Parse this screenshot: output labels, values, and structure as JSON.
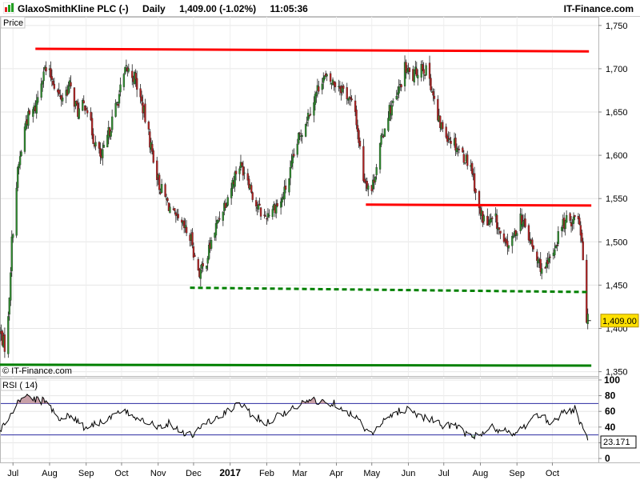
{
  "header": {
    "instrument": "GlaxoSmithKline PLC (-)",
    "period": "Daily",
    "quote": "1,409.00 (-1.02%)",
    "time": "11:05:36",
    "brand": "IT-Finance.com"
  },
  "watermark": "© IT-Finance.com",
  "price_panel_label": "Price",
  "rsi_panel_label": "RSI ( 14)",
  "last_price_tag": "1,409.00",
  "last_rsi_tag": "23.171",
  "colors": {
    "up": "#2e8b2e",
    "down": "#b22222",
    "resistance": "#ff0000",
    "support": "#008000",
    "rsi_line": "#000000",
    "rsi_band": "#2a2aa0",
    "price_tag_bg": "#ffe000"
  },
  "chart_data": [
    {
      "type": "candlestick",
      "name": "Price",
      "y_ticks": [
        "1,750",
        "1,700",
        "1,650",
        "1,600",
        "1,550",
        "1,500",
        "1,450",
        "1,400",
        "1,350"
      ],
      "y_tick_values": [
        1750,
        1700,
        1650,
        1600,
        1550,
        1500,
        1450,
        1400,
        1350
      ],
      "ylim": [
        1345,
        1760
      ],
      "x_ticks": [
        "Jul",
        "Aug",
        "Sep",
        "Oct",
        "Nov",
        "Dec",
        "2017",
        "Feb",
        "Mar",
        "Apr",
        "May",
        "Jun",
        "Jul",
        "Aug",
        "Sep",
        "Oct"
      ],
      "x_tick_dates": [
        "2016-07-01",
        "2016-08-01",
        "2016-09-01",
        "2016-10-01",
        "2016-11-01",
        "2016-12-01",
        "2017-01-01",
        "2017-02-01",
        "2017-03-01",
        "2017-04-01",
        "2017-05-01",
        "2017-06-01",
        "2017-07-01",
        "2017-08-01",
        "2017-09-01",
        "2017-10-01"
      ],
      "xlim": [
        "2016-06-20",
        "2017-11-09"
      ],
      "path": [
        [
          "2016-06-20",
          1395
        ],
        [
          "2016-06-24",
          1380
        ],
        [
          "2016-06-27",
          1410
        ],
        [
          "2016-06-30",
          1500
        ],
        [
          "2016-07-05",
          1580
        ],
        [
          "2016-07-12",
          1640
        ],
        [
          "2016-07-20",
          1655
        ],
        [
          "2016-07-27",
          1700
        ],
        [
          "2016-08-03",
          1690
        ],
        [
          "2016-08-10",
          1665
        ],
        [
          "2016-08-18",
          1680
        ],
        [
          "2016-08-25",
          1650
        ],
        [
          "2016-09-01",
          1660
        ],
        [
          "2016-09-07",
          1620
        ],
        [
          "2016-09-14",
          1595
        ],
        [
          "2016-09-21",
          1630
        ],
        [
          "2016-09-28",
          1665
        ],
        [
          "2016-10-05",
          1700
        ],
        [
          "2016-10-12",
          1690
        ],
        [
          "2016-10-19",
          1655
        ],
        [
          "2016-10-26",
          1610
        ],
        [
          "2016-11-02",
          1565
        ],
        [
          "2016-11-09",
          1545
        ],
        [
          "2016-11-16",
          1525
        ],
        [
          "2016-11-23",
          1515
        ],
        [
          "2016-11-30",
          1500
        ],
        [
          "2016-12-02",
          1480
        ],
        [
          "2016-12-06",
          1465
        ],
        [
          "2016-12-10",
          1470
        ],
        [
          "2016-12-16",
          1500
        ],
        [
          "2016-12-23",
          1530
        ],
        [
          "2017-01-01",
          1560
        ],
        [
          "2017-01-08",
          1590
        ],
        [
          "2017-01-15",
          1580
        ],
        [
          "2017-01-22",
          1545
        ],
        [
          "2017-01-30",
          1528
        ],
        [
          "2017-02-06",
          1540
        ],
        [
          "2017-02-13",
          1545
        ],
        [
          "2017-02-20",
          1575
        ],
        [
          "2017-02-27",
          1615
        ],
        [
          "2017-03-06",
          1640
        ],
        [
          "2017-03-13",
          1665
        ],
        [
          "2017-03-20",
          1690
        ],
        [
          "2017-03-27",
          1685
        ],
        [
          "2017-04-03",
          1682
        ],
        [
          "2017-04-10",
          1670
        ],
        [
          "2017-04-17",
          1650
        ],
        [
          "2017-04-24",
          1575
        ],
        [
          "2017-05-01",
          1560
        ],
        [
          "2017-05-08",
          1610
        ],
        [
          "2017-05-15",
          1650
        ],
        [
          "2017-05-22",
          1665
        ],
        [
          "2017-05-29",
          1700
        ],
        [
          "2017-06-05",
          1690
        ],
        [
          "2017-06-12",
          1705
        ],
        [
          "2017-06-19",
          1690
        ],
        [
          "2017-06-26",
          1640
        ],
        [
          "2017-07-03",
          1625
        ],
        [
          "2017-07-10",
          1615
        ],
        [
          "2017-07-17",
          1600
        ],
        [
          "2017-07-24",
          1590
        ],
        [
          "2017-07-31",
          1535
        ],
        [
          "2017-08-07",
          1520
        ],
        [
          "2017-08-14",
          1525
        ],
        [
          "2017-08-21",
          1495
        ],
        [
          "2017-08-28",
          1500
        ],
        [
          "2017-09-04",
          1530
        ],
        [
          "2017-09-11",
          1505
        ],
        [
          "2017-09-18",
          1478
        ],
        [
          "2017-09-25",
          1465
        ],
        [
          "2017-10-02",
          1490
        ],
        [
          "2017-10-09",
          1520
        ],
        [
          "2017-10-16",
          1525
        ],
        [
          "2017-10-23",
          1530
        ],
        [
          "2017-10-26",
          1505
        ],
        [
          "2017-10-30",
          1413
        ],
        [
          "2017-10-31",
          1409
        ]
      ],
      "last_close": 1409.0,
      "annotations": [
        {
          "kind": "resistance",
          "style": "solid",
          "from": [
            "2016-07-20",
            1723
          ],
          "to": [
            "2017-11-01",
            1720
          ]
        },
        {
          "kind": "resistance",
          "style": "solid",
          "from": [
            "2017-04-26",
            1543
          ],
          "to": [
            "2017-11-03",
            1542
          ]
        },
        {
          "kind": "support",
          "style": "dashed",
          "from": [
            "2016-11-28",
            1447
          ],
          "to": [
            "2017-11-01",
            1442
          ]
        },
        {
          "kind": "support",
          "style": "solid",
          "from": [
            "2016-06-20",
            1358
          ],
          "to": [
            "2017-11-03",
            1357
          ]
        }
      ]
    },
    {
      "type": "line",
      "name": "RSI ( 14)",
      "y_ticks": [
        "100",
        "80",
        "60",
        "40",
        "20",
        "0"
      ],
      "y_tick_values": [
        100,
        80,
        60,
        40,
        20,
        0
      ],
      "ylim": [
        -5,
        103
      ],
      "bands": [
        70,
        30
      ],
      "x": [
        "2016-06-20",
        "2016-07-01",
        "2016-07-10",
        "2016-07-20",
        "2016-07-30",
        "2016-08-10",
        "2016-08-20",
        "2016-08-30",
        "2016-09-10",
        "2016-09-20",
        "2016-10-01",
        "2016-10-10",
        "2016-10-20",
        "2016-11-01",
        "2016-11-10",
        "2016-11-20",
        "2016-12-01",
        "2016-12-10",
        "2016-12-20",
        "2017-01-01",
        "2017-01-10",
        "2017-01-20",
        "2017-02-01",
        "2017-02-10",
        "2017-02-20",
        "2017-03-01",
        "2017-03-10",
        "2017-03-20",
        "2017-04-01",
        "2017-04-10",
        "2017-04-20",
        "2017-05-01",
        "2017-05-10",
        "2017-05-20",
        "2017-06-01",
        "2017-06-10",
        "2017-06-20",
        "2017-07-01",
        "2017-07-10",
        "2017-07-20",
        "2017-08-01",
        "2017-08-10",
        "2017-08-20",
        "2017-09-01",
        "2017-09-10",
        "2017-09-20",
        "2017-10-01",
        "2017-10-10",
        "2017-10-20",
        "2017-10-31"
      ],
      "values": [
        35,
        60,
        82,
        75,
        72,
        50,
        55,
        40,
        45,
        50,
        60,
        55,
        50,
        40,
        45,
        35,
        30,
        45,
        50,
        62,
        70,
        55,
        45,
        55,
        60,
        68,
        75,
        72,
        70,
        60,
        48,
        30,
        45,
        58,
        64,
        55,
        50,
        40,
        45,
        30,
        28,
        40,
        35,
        32,
        45,
        55,
        45,
        60,
        63,
        23.171
      ]
    }
  ]
}
